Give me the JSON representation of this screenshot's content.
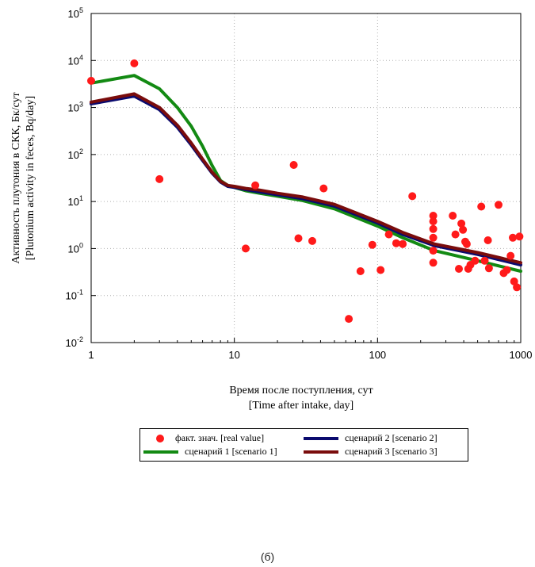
{
  "chart_data": {
    "type": "scatter",
    "xscale": "log",
    "yscale": "log",
    "xlim": [
      1,
      1000
    ],
    "ylim": [
      0.01,
      100000
    ],
    "grid": true,
    "legend_placement": "bottom",
    "xlabel_lines": [
      "Время после поступления, сут",
      "[Time after intake, day]"
    ],
    "ylabel_lines": [
      "Активность плутония в СКК, Бк/сут",
      "[Plutonium activity in feces, Bq/day]"
    ],
    "x_tick_labels": [
      "1",
      "10",
      "100",
      "1000"
    ],
    "y_tick_labels": [
      {
        "base": "10",
        "exp": "-2"
      },
      {
        "base": "10",
        "exp": "-1"
      },
      {
        "base": "10",
        "exp": "0"
      },
      {
        "base": "10",
        "exp": "1"
      },
      {
        "base": "10",
        "exp": "2"
      },
      {
        "base": "10",
        "exp": "3"
      },
      {
        "base": "10",
        "exp": "4"
      },
      {
        "base": "10",
        "exp": "5"
      }
    ],
    "points": {
      "name": "факт. знач. [real value]",
      "color": "#ff1a1a",
      "x": [
        1,
        2,
        3,
        12,
        14,
        26,
        28,
        35,
        42,
        63,
        76,
        92,
        105,
        120,
        135,
        150,
        175,
        245,
        245,
        245,
        245,
        245,
        245,
        335,
        350,
        370,
        385,
        395,
        410,
        420,
        430,
        445,
        480,
        530,
        560,
        590,
        600,
        700,
        760,
        800,
        850,
        880,
        900,
        940,
        980
      ],
      "y": [
        3700,
        8700,
        30,
        1.0,
        22,
        60,
        1.65,
        1.45,
        19,
        0.032,
        0.33,
        1.2,
        0.35,
        2.0,
        1.3,
        1.25,
        13,
        5.0,
        3.8,
        2.6,
        1.7,
        0.5,
        0.9,
        5.0,
        2.0,
        0.37,
        3.4,
        2.5,
        1.4,
        1.25,
        0.37,
        0.45,
        0.55,
        7.8,
        0.55,
        1.5,
        0.38,
        8.5,
        0.3,
        0.35,
        0.7,
        1.7,
        0.2,
        0.15,
        1.8
      ]
    },
    "series": [
      {
        "name": "сценарий 1 [scenario 1]",
        "color": "#138a13",
        "x": [
          1,
          2,
          3,
          4,
          5,
          6,
          7,
          8,
          9,
          10,
          12,
          15,
          20,
          30,
          50,
          100,
          150,
          250,
          500,
          1000
        ],
        "y": [
          3300,
          4800,
          2500,
          1000,
          400,
          150,
          58,
          28,
          22,
          20,
          17,
          15,
          13,
          10.5,
          7,
          3,
          1.7,
          0.9,
          0.55,
          0.33
        ]
      },
      {
        "name": "сценарий 2 [scenario 2]",
        "color": "#0a0a6e",
        "x": [
          1,
          2,
          3,
          4,
          5,
          6,
          7,
          8,
          9,
          10,
          12,
          15,
          20,
          30,
          50,
          100,
          150,
          250,
          500,
          1000
        ],
        "y": [
          1200,
          1750,
          900,
          380,
          160,
          75,
          40,
          26,
          21,
          20,
          18,
          16,
          14,
          11.5,
          8,
          3.5,
          2.0,
          1.15,
          0.75,
          0.45
        ]
      },
      {
        "name": "сценарий 3 [scenario 3]",
        "color": "#7a0c0c",
        "x": [
          1,
          2,
          3,
          4,
          5,
          6,
          7,
          8,
          9,
          10,
          12,
          15,
          20,
          30,
          50,
          100,
          150,
          250,
          500,
          1000
        ],
        "y": [
          1300,
          1950,
          1000,
          420,
          175,
          80,
          42,
          27,
          22,
          21,
          19,
          17.5,
          15,
          12.5,
          8.7,
          3.8,
          2.2,
          1.25,
          0.82,
          0.5
        ]
      }
    ]
  },
  "legend": {
    "real_label": "факт. знач. [real value]",
    "s1_label": "сценарий 1 [scenario 1]",
    "s2_label": "сценарий 2 [scenario 2]",
    "s3_label": "сценарий 3 [scenario 3]"
  },
  "caption": "(б)"
}
